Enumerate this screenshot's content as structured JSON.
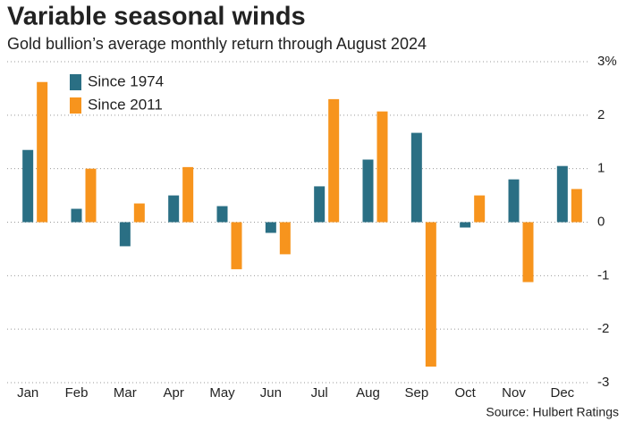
{
  "chart_data": {
    "type": "bar",
    "title": "Variable seasonal winds",
    "subtitle": "Gold bullion’s average monthly return through August 2024",
    "source": "Source: Hulbert Ratings",
    "categories": [
      "Jan",
      "Feb",
      "Mar",
      "Apr",
      "May",
      "Jun",
      "Jul",
      "Aug",
      "Sep",
      "Oct",
      "Nov",
      "Dec"
    ],
    "series": [
      {
        "name": "Since 1974",
        "color": "#2a6f84",
        "values": [
          1.35,
          0.25,
          -0.45,
          0.5,
          0.3,
          -0.2,
          0.67,
          1.17,
          1.67,
          -0.1,
          0.8,
          1.05
        ]
      },
      {
        "name": "Since 2011",
        "color": "#f7941d",
        "values": [
          2.62,
          1.0,
          0.35,
          1.03,
          -0.88,
          -0.6,
          2.3,
          2.07,
          -2.7,
          0.5,
          -1.12,
          0.62
        ]
      }
    ],
    "ylim": [
      -3,
      3
    ],
    "yticks": [
      {
        "value": 3,
        "label": "3%"
      },
      2,
      1,
      0,
      -1,
      -2,
      -3
    ],
    "grid": true,
    "legend": "top-left"
  }
}
